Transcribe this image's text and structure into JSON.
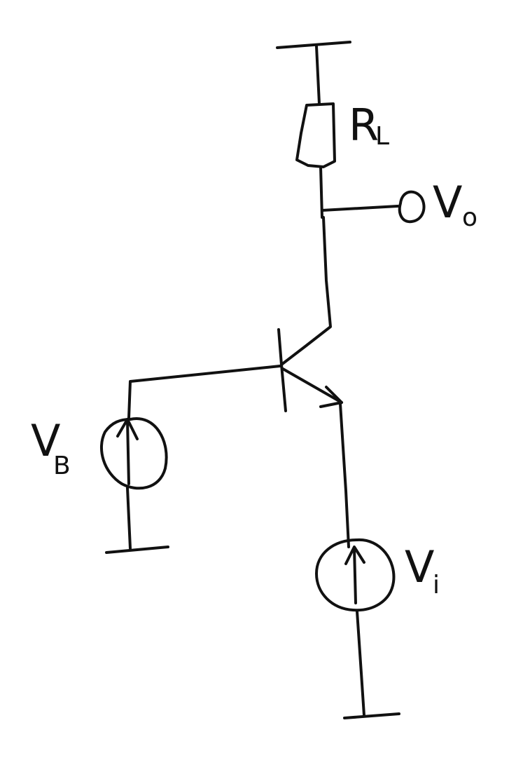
{
  "labels": {
    "load_resistor": {
      "main": "R",
      "sub": "L"
    },
    "output_node": {
      "main": "V",
      "sub": "o"
    },
    "bias_source": {
      "main": "V",
      "sub": "B"
    },
    "input_source": {
      "main": "V",
      "sub": "i"
    }
  }
}
